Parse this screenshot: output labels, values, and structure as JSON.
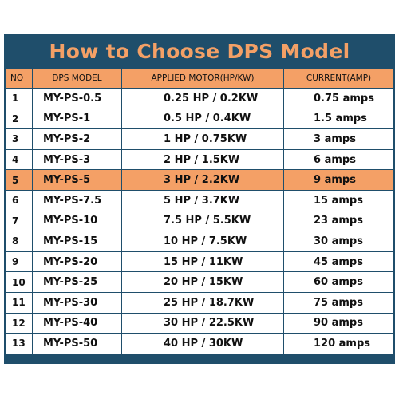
{
  "title": "How to Choose DPS Model",
  "headers": {
    "no": "NO",
    "model": "DPS MODEL",
    "motor": "APPLIED MOTOR(HP/KW)",
    "current": "CURRENT(AMP)"
  },
  "colors": {
    "frame": "#1f4e6b",
    "accent": "#f4a066",
    "row_bg": "#ffffff"
  },
  "highlighted_row": 5,
  "rows": [
    {
      "no": "1",
      "model": "MY-PS-0.5",
      "motor": "0.25 HP / 0.2KW",
      "current": "0.75 amps"
    },
    {
      "no": "2",
      "model": "MY-PS-1",
      "motor": "0.5 HP / 0.4KW",
      "current": "1.5 amps"
    },
    {
      "no": "3",
      "model": "MY-PS-2",
      "motor": "1 HP / 0.75KW",
      "current": "3 amps"
    },
    {
      "no": "4",
      "model": "MY-PS-3",
      "motor": "2 HP / 1.5KW",
      "current": "6 amps"
    },
    {
      "no": "5",
      "model": "MY-PS-5",
      "motor": "3 HP / 2.2KW",
      "current": "9 amps"
    },
    {
      "no": "6",
      "model": "MY-PS-7.5",
      "motor": "5 HP / 3.7KW",
      "current": "15 amps"
    },
    {
      "no": "7",
      "model": "MY-PS-10",
      "motor": "7.5 HP / 5.5KW",
      "current": "23 amps"
    },
    {
      "no": "8",
      "model": "MY-PS-15",
      "motor": "10 HP / 7.5KW",
      "current": "30 amps"
    },
    {
      "no": "9",
      "model": "MY-PS-20",
      "motor": "15 HP / 11KW",
      "current": "45 amps"
    },
    {
      "no": "10",
      "model": "MY-PS-25",
      "motor": "20 HP / 15KW",
      "current": "60 amps"
    },
    {
      "no": "11",
      "model": "MY-PS-30",
      "motor": "25 HP / 18.7KW",
      "current": "75 amps"
    },
    {
      "no": "12",
      "model": "MY-PS-40",
      "motor": "30 HP / 22.5KW",
      "current": "90 amps"
    },
    {
      "no": "13",
      "model": "MY-PS-50",
      "motor": "40 HP / 30KW",
      "current": "120 amps"
    }
  ]
}
